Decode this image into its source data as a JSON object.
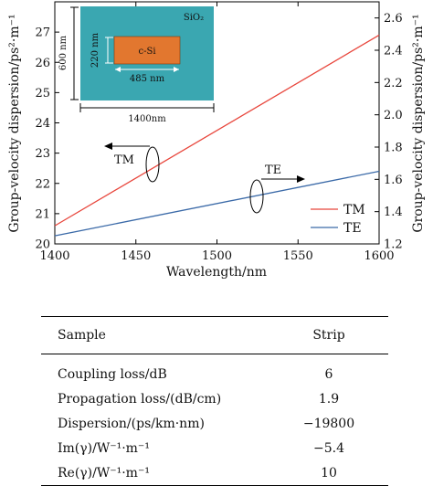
{
  "chart_data": {
    "type": "line",
    "xlabel": "Wavelength/nm",
    "ylabel": "Group-velocity dispersion/ps²·m⁻¹",
    "y2label": "Group-velocity dispersion/ps²·m⁻¹",
    "xlim": [
      1400,
      1600
    ],
    "ylim": [
      20,
      28
    ],
    "y2lim": [
      1.2,
      2.7
    ],
    "x_ticks": [
      "1400",
      "1450",
      "1500",
      "1550",
      "1600"
    ],
    "y_ticks": [
      "20",
      "21",
      "22",
      "23",
      "24",
      "25",
      "26",
      "27"
    ],
    "y2_ticks": [
      "1.2",
      "1.4",
      "1.6",
      "1.8",
      "2.0",
      "2.2",
      "2.4",
      "2.6"
    ],
    "grid": false,
    "legend_position": "bottom-right",
    "series": [
      {
        "name": "TM",
        "axis": "left",
        "color": "#e8463c",
        "x": [
          1400,
          1600
        ],
        "y": [
          20.6,
          26.9
        ]
      },
      {
        "name": "TE",
        "axis": "right",
        "color": "#3b6aa8",
        "x": [
          1400,
          1600
        ],
        "y": [
          1.25,
          1.65
        ]
      }
    ],
    "annotations": {
      "tm_label": "TM",
      "te_label": "TE",
      "inset": {
        "cladding": "SiO₂",
        "core": "c-Si",
        "core_width": "485 nm",
        "core_height": "220 nm",
        "total_width": "1400nm",
        "total_height": "600 nm",
        "cladding_color": "#3aa7b1",
        "core_color": "#e2772f"
      }
    }
  },
  "table": {
    "headers": [
      "Sample",
      "Strip"
    ],
    "rows": [
      [
        "Coupling loss/dB",
        "6"
      ],
      [
        "Propagation loss/(dB/cm)",
        "1.9"
      ],
      [
        "Dispersion/(ps/km·nm)",
        "−19800"
      ],
      [
        "Im(γ)/W⁻¹·m⁻¹",
        "−5.4"
      ],
      [
        "Re(γ)/W⁻¹·m⁻¹",
        "10"
      ]
    ]
  }
}
